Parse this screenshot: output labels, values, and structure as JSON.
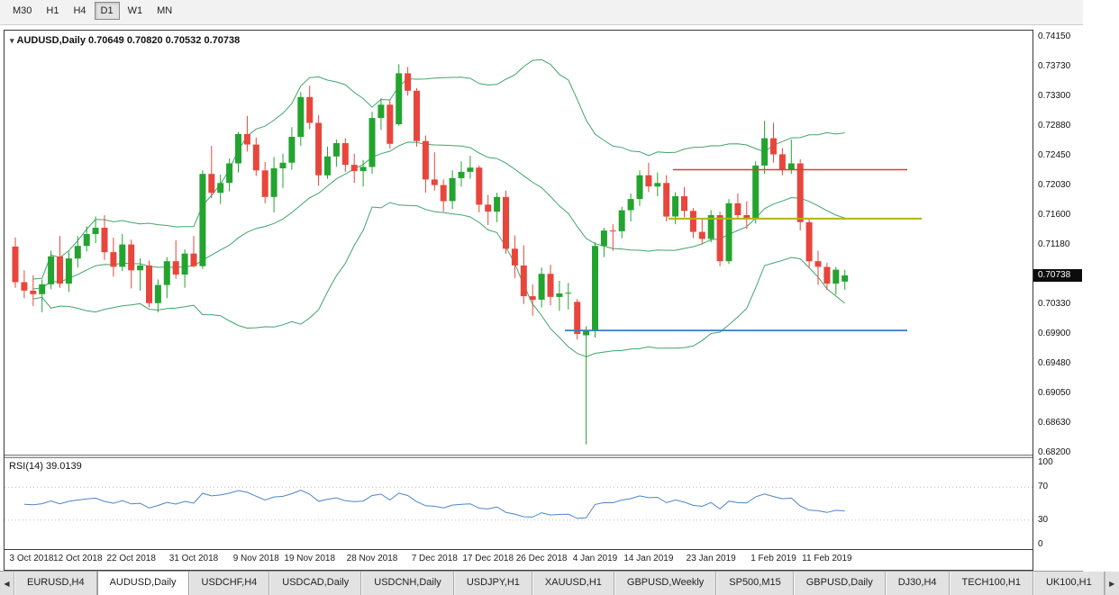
{
  "toolbar": {
    "timeframes": [
      "M30",
      "H1",
      "H4",
      "D1",
      "W1",
      "MN"
    ],
    "active_timeframe": "D1"
  },
  "chart": {
    "title_symbol": "AUDUSD,Daily",
    "ohlc_text": "0.70649 0.70820 0.70532 0.70738",
    "price_badge": "0.70738"
  },
  "rsi_panel": {
    "label": "RSI(14) 39.0139",
    "ticks": [
      "100",
      "70",
      "30",
      "0"
    ],
    "levels": [
      70,
      30
    ]
  },
  "bottom_tabs": {
    "left_arrow": "◀",
    "right_arrow": "▶",
    "tabs": [
      {
        "label": "EURUSD,H4",
        "active": false
      },
      {
        "label": "AUDUSD,Daily",
        "active": true
      },
      {
        "label": "USDCHF,H4",
        "active": false
      },
      {
        "label": "USDCAD,Daily",
        "active": false
      },
      {
        "label": "USDCNH,Daily",
        "active": false
      },
      {
        "label": "USDJPY,H1",
        "active": false
      },
      {
        "label": "XAUUSD,H1",
        "active": false
      },
      {
        "label": "GBPUSD,Weekly",
        "active": false
      },
      {
        "label": "SP500,M15",
        "active": false
      },
      {
        "label": "GBPUSD,Daily",
        "active": false
      },
      {
        "label": "DJ30,H4",
        "active": false
      },
      {
        "label": "TECH100,H1",
        "active": false
      },
      {
        "label": "UK100,H1",
        "active": false
      }
    ]
  },
  "colors": {
    "candle_up": "#23a42f",
    "candle_down": "#e8463c",
    "bands": "#3fa56b",
    "rsi_line": "#4a86c8",
    "hline_red": "#e53935",
    "hline_yellow": "#b2b400",
    "hline_blue": "#3b7cc4",
    "badge_bg": "#0c0c0c"
  },
  "chart_data": {
    "type": "candlestick",
    "symbol": "AUDUSD",
    "timeframe": "Daily",
    "ylim": [
      0.682,
      0.7415
    ],
    "y_ticks": [
      "0.74150",
      "0.73730",
      "0.73300",
      "0.72880",
      "0.72450",
      "0.72030",
      "0.71600",
      "0.71180",
      "0.70330",
      "0.69900",
      "0.69480",
      "0.69050",
      "0.68630",
      "0.68200"
    ],
    "x_ticks": [
      {
        "label": "3 Oct 2018",
        "i": 0
      },
      {
        "label": "12 Oct 2018",
        "i": 7
      },
      {
        "label": "22 Oct 2018",
        "i": 13
      },
      {
        "label": "31 Oct 2018",
        "i": 20
      },
      {
        "label": "9 Nov 2018",
        "i": 27
      },
      {
        "label": "19 Nov 2018",
        "i": 33
      },
      {
        "label": "28 Nov 2018",
        "i": 40
      },
      {
        "label": "7 Dec 2018",
        "i": 47
      },
      {
        "label": "17 Dec 2018",
        "i": 53
      },
      {
        "label": "26 Dec 2018",
        "i": 59
      },
      {
        "label": "4 Jan 2019",
        "i": 65
      },
      {
        "label": "14 Jan 2019",
        "i": 71
      },
      {
        "label": "23 Jan 2019",
        "i": 78
      },
      {
        "label": "1 Feb 2019",
        "i": 85
      },
      {
        "label": "11 Feb 2019",
        "i": 91
      }
    ],
    "candles": [
      [
        0.7115,
        0.7128,
        0.7056,
        0.7064
      ],
      [
        0.7064,
        0.7081,
        0.7041,
        0.7052
      ],
      [
        0.7052,
        0.7074,
        0.703,
        0.7047
      ],
      [
        0.7047,
        0.7068,
        0.7021,
        0.7061
      ],
      [
        0.7061,
        0.7109,
        0.7054,
        0.7101
      ],
      [
        0.7101,
        0.713,
        0.7056,
        0.7062
      ],
      [
        0.7062,
        0.7108,
        0.705,
        0.7098
      ],
      [
        0.7098,
        0.713,
        0.7085,
        0.7116
      ],
      [
        0.7116,
        0.7144,
        0.7108,
        0.7133
      ],
      [
        0.7133,
        0.7158,
        0.712,
        0.7142
      ],
      [
        0.7142,
        0.716,
        0.7096,
        0.7107
      ],
      [
        0.7107,
        0.7128,
        0.7072,
        0.7086
      ],
      [
        0.7086,
        0.7133,
        0.708,
        0.7118
      ],
      [
        0.7118,
        0.7125,
        0.7055,
        0.7081
      ],
      [
        0.7081,
        0.7098,
        0.7052,
        0.7088
      ],
      [
        0.7088,
        0.7095,
        0.7028,
        0.7034
      ],
      [
        0.7034,
        0.7068,
        0.7021,
        0.706
      ],
      [
        0.706,
        0.71,
        0.7041,
        0.7094
      ],
      [
        0.7094,
        0.7124,
        0.7069,
        0.7075
      ],
      [
        0.7075,
        0.7111,
        0.7056,
        0.7105
      ],
      [
        0.7105,
        0.713,
        0.7085,
        0.7087
      ],
      [
        0.7087,
        0.7224,
        0.7083,
        0.7219
      ],
      [
        0.7219,
        0.7259,
        0.7184,
        0.7192
      ],
      [
        0.7192,
        0.7218,
        0.7176,
        0.7206
      ],
      [
        0.7206,
        0.7241,
        0.7194,
        0.7234
      ],
      [
        0.7234,
        0.7279,
        0.7221,
        0.7276
      ],
      [
        0.7276,
        0.7302,
        0.7251,
        0.7261
      ],
      [
        0.7261,
        0.7271,
        0.7216,
        0.7224
      ],
      [
        0.7224,
        0.7236,
        0.7177,
        0.7186
      ],
      [
        0.7186,
        0.7243,
        0.7164,
        0.7227
      ],
      [
        0.7227,
        0.7248,
        0.7199,
        0.7235
      ],
      [
        0.7235,
        0.7286,
        0.7225,
        0.7272
      ],
      [
        0.7272,
        0.7336,
        0.7259,
        0.7329
      ],
      [
        0.7329,
        0.7345,
        0.7283,
        0.7292
      ],
      [
        0.7292,
        0.7303,
        0.7202,
        0.7217
      ],
      [
        0.7217,
        0.7258,
        0.7212,
        0.7244
      ],
      [
        0.7244,
        0.7268,
        0.7229,
        0.7263
      ],
      [
        0.7263,
        0.727,
        0.7222,
        0.7232
      ],
      [
        0.7232,
        0.7248,
        0.7206,
        0.7223
      ],
      [
        0.7223,
        0.7239,
        0.7201,
        0.7229
      ],
      [
        0.7229,
        0.7308,
        0.7219,
        0.7299
      ],
      [
        0.7299,
        0.7327,
        0.7282,
        0.7318
      ],
      [
        0.7318,
        0.7325,
        0.7255,
        0.7262
      ],
      [
        0.729,
        0.7376,
        0.7288,
        0.7363
      ],
      [
        0.7363,
        0.7372,
        0.7331,
        0.7338
      ],
      [
        0.7338,
        0.7342,
        0.7258,
        0.7266
      ],
      [
        0.7266,
        0.7274,
        0.7192,
        0.7211
      ],
      [
        0.7211,
        0.725,
        0.7195,
        0.7203
      ],
      [
        0.7203,
        0.7211,
        0.7165,
        0.718
      ],
      [
        0.718,
        0.7224,
        0.7169,
        0.7213
      ],
      [
        0.7213,
        0.7237,
        0.7201,
        0.7222
      ],
      [
        0.7222,
        0.7245,
        0.7212,
        0.7228
      ],
      [
        0.7228,
        0.7231,
        0.7164,
        0.7175
      ],
      [
        0.7175,
        0.7189,
        0.7146,
        0.7165
      ],
      [
        0.7165,
        0.7192,
        0.715,
        0.7186
      ],
      [
        0.7186,
        0.7195,
        0.7105,
        0.7112
      ],
      [
        0.7112,
        0.7131,
        0.707,
        0.7088
      ],
      [
        0.7088,
        0.7117,
        0.7033,
        0.7044
      ],
      [
        0.7044,
        0.7061,
        0.7016,
        0.7039
      ],
      [
        0.7039,
        0.7085,
        0.7028,
        0.7076
      ],
      [
        0.7076,
        0.7089,
        0.7031,
        0.7043
      ],
      [
        0.7043,
        0.7066,
        0.7023,
        0.7048
      ],
      [
        0.7048,
        0.7063,
        0.7025,
        0.7049
      ],
      [
        0.7036,
        0.704,
        0.6982,
        0.699
      ],
      [
        0.6988,
        0.7001,
        0.6832,
        0.6995
      ],
      [
        0.6995,
        0.7121,
        0.6985,
        0.7116
      ],
      [
        0.7116,
        0.7142,
        0.71,
        0.7138
      ],
      [
        0.7138,
        0.7147,
        0.7109,
        0.7137
      ],
      [
        0.7137,
        0.7172,
        0.7127,
        0.7167
      ],
      [
        0.7167,
        0.7191,
        0.7151,
        0.7183
      ],
      [
        0.7183,
        0.7224,
        0.7173,
        0.7217
      ],
      [
        0.7217,
        0.7235,
        0.7193,
        0.7201
      ],
      [
        0.7201,
        0.7221,
        0.7187,
        0.7206
      ],
      [
        0.7206,
        0.7217,
        0.7151,
        0.7158
      ],
      [
        0.7158,
        0.7193,
        0.7147,
        0.7187
      ],
      [
        0.7187,
        0.72,
        0.7157,
        0.7166
      ],
      [
        0.7166,
        0.717,
        0.7127,
        0.7136
      ],
      [
        0.7136,
        0.7156,
        0.7119,
        0.7126
      ],
      [
        0.7126,
        0.7167,
        0.7121,
        0.716
      ],
      [
        0.716,
        0.7165,
        0.7087,
        0.7094
      ],
      [
        0.7094,
        0.7183,
        0.709,
        0.7177
      ],
      [
        0.7177,
        0.7191,
        0.7155,
        0.716
      ],
      [
        0.716,
        0.718,
        0.714,
        0.7156
      ],
      [
        0.7156,
        0.7237,
        0.7148,
        0.7231
      ],
      [
        0.7231,
        0.7295,
        0.7219,
        0.727
      ],
      [
        0.727,
        0.7292,
        0.7235,
        0.7247
      ],
      [
        0.7247,
        0.7256,
        0.7217,
        0.7225
      ],
      [
        0.7225,
        0.7268,
        0.7219,
        0.7234
      ],
      [
        0.7234,
        0.724,
        0.7138,
        0.715
      ],
      [
        0.715,
        0.7154,
        0.7085,
        0.7094
      ],
      [
        0.7094,
        0.7109,
        0.706,
        0.7086
      ],
      [
        0.7086,
        0.7092,
        0.7053,
        0.7062
      ],
      [
        0.7062,
        0.7086,
        0.7046,
        0.7082
      ],
      [
        0.70649,
        0.7082,
        0.70532,
        0.70738
      ]
    ],
    "overlays": {
      "bollinger_bands": {
        "period": 20,
        "deviations": 2,
        "color": "#3fa56b"
      },
      "hlines": [
        {
          "price": 0.7225,
          "color": "#e53935",
          "width": 1.4,
          "x1": 742,
          "x2": 1002
        },
        {
          "price": 0.7155,
          "color": "#b2b400",
          "width": 2.0,
          "x1": 737,
          "x2": 1018
        },
        {
          "price": 0.6995,
          "color": "#3b7cc4",
          "width": 1.8,
          "x1": 622,
          "x2": 1002
        }
      ]
    },
    "indicator_panes": [
      {
        "type": "rsi",
        "period": 14,
        "last_value": 39.0139,
        "color": "#4a86c8"
      }
    ]
  }
}
